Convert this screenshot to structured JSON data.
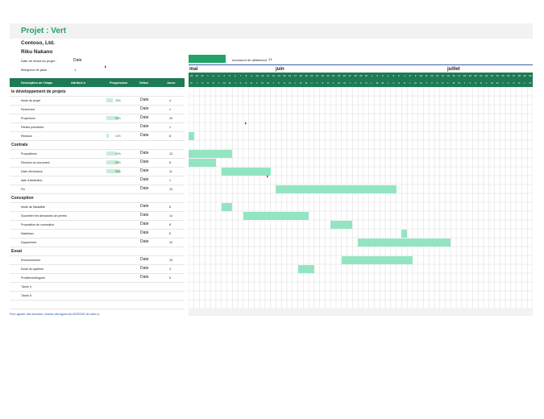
{
  "header": {
    "title": "Projet : Vert",
    "company": "Contoso, Ltd.",
    "manager": "Riku Nakano",
    "start_label": "Date de début du projet :",
    "start_value": "Date",
    "marker_label": "Marqueur de jalon :",
    "marker_value": "1",
    "increment_label": "Incrément de défilement :",
    "increment_value": "13"
  },
  "timeline": {
    "months": [
      "mai",
      "juin",
      "juillet"
    ],
    "day_numbers": [
      "29",
      "30",
      "31",
      "1",
      "2",
      "3",
      "4",
      "5",
      "6",
      "7",
      "8",
      "9",
      "10",
      "11",
      "12",
      "13",
      "14",
      "15",
      "16",
      "17",
      "18",
      "19",
      "20",
      "21",
      "22",
      "23",
      "24",
      "25",
      "26",
      "27",
      "28",
      "29",
      "30",
      "1",
      "2",
      "3",
      "4",
      "5",
      "6",
      "7",
      "8",
      "9",
      "10",
      "11",
      "12",
      "13",
      "14",
      "15",
      "16",
      "17",
      "18",
      "19",
      "20",
      "21",
      "22",
      "23",
      "24",
      "25",
      "26",
      "27",
      "28",
      "29",
      "30"
    ],
    "day_letters": [
      "M",
      "J",
      "V",
      "S",
      "D",
      "L",
      "M",
      "M",
      "J",
      "V",
      "S",
      "D",
      "L",
      "M",
      "M",
      "J",
      "V",
      "S",
      "D",
      "L",
      "M",
      "M",
      "J",
      "V",
      "S",
      "D",
      "L",
      "M",
      "M",
      "J",
      "V",
      "S",
      "D",
      "L",
      "M",
      "M",
      "J",
      "V",
      "S",
      "D",
      "L",
      "M",
      "M",
      "J",
      "V",
      "S",
      "D",
      "L",
      "M",
      "M",
      "J",
      "V",
      "S",
      "D",
      "L",
      "M",
      "M",
      "J",
      "V",
      "S",
      "D",
      "L",
      "M",
      "M"
    ]
  },
  "columns": {
    "description": "Description de l'étape",
    "assigned": "Attribué à",
    "progress": "Progression",
    "start": "Début",
    "days": "Jours"
  },
  "rows": [
    {
      "kind": "phase",
      "label": "le développement de projets"
    },
    {
      "kind": "task",
      "label": "étude de projet",
      "progress": "25%",
      "progress_value": 25,
      "start": "Date",
      "days": "4",
      "bar_start": -1,
      "bar_len": 0,
      "milestone": false
    },
    {
      "kind": "task",
      "label": "Recherche",
      "progress": "",
      "progress_value": 0,
      "start": "Date",
      "days": "1",
      "bar_start": -1,
      "bar_len": 0,
      "milestone": false
    },
    {
      "kind": "task",
      "label": "Projections",
      "progress": "50%",
      "progress_value": 50,
      "start": "Date",
      "days": "20",
      "bar_start": -1,
      "bar_len": 0,
      "milestone": false
    },
    {
      "kind": "task",
      "label": "Parties prenantes",
      "progress": "",
      "progress_value": 0,
      "start": "Date",
      "days": "1",
      "bar_start": -1,
      "bar_len": 0,
      "milestone": true,
      "milestone_day": 10
    },
    {
      "kind": "task",
      "label": "Révision",
      "progress": "10%",
      "progress_value": 10,
      "start": "Date",
      "days": "8",
      "bar_start": 0,
      "bar_len": 1,
      "milestone": false
    },
    {
      "kind": "phase",
      "label": "Contrats"
    },
    {
      "kind": "task",
      "label": "Propositions",
      "progress": "40%",
      "progress_value": 40,
      "start": "Date",
      "days": "13",
      "bar_start": 0,
      "bar_len": 8,
      "milestone": false
    },
    {
      "kind": "task",
      "label": "Révision du document",
      "progress": "50%",
      "progress_value": 50,
      "start": "Date",
      "days": "8",
      "bar_start": 0,
      "bar_len": 5,
      "milestone": false
    },
    {
      "kind": "task",
      "label": "Date d'échéance",
      "progress": "55%",
      "progress_value": 55,
      "start": "Date",
      "days": "11",
      "bar_start": 6,
      "bar_len": 9,
      "milestone": false
    },
    {
      "kind": "task",
      "label": "date d'attribution",
      "progress": "",
      "progress_value": 0,
      "start": "Date",
      "days": "1",
      "bar_start": -1,
      "bar_len": 0,
      "milestone": true,
      "milestone_day": 14
    },
    {
      "kind": "task",
      "label": "Fin",
      "progress": "",
      "progress_value": 0,
      "start": "Date",
      "days": "24",
      "bar_start": 16,
      "bar_len": 22,
      "milestone": false
    },
    {
      "kind": "phase",
      "label": "Conception"
    },
    {
      "kind": "task",
      "label": "étude de faisabilité",
      "progress": "",
      "progress_value": 0,
      "start": "Date",
      "days": "8",
      "bar_start": 6,
      "bar_len": 2,
      "milestone": false
    },
    {
      "kind": "task",
      "label": "Soumettre les demandes de permis",
      "progress": "",
      "progress_value": 0,
      "start": "Date",
      "days": "14",
      "bar_start": 10,
      "bar_len": 12,
      "milestone": false
    },
    {
      "kind": "task",
      "label": "Proposition de conception",
      "progress": "",
      "progress_value": 0,
      "start": "Date",
      "days": "8",
      "bar_start": 26,
      "bar_len": 4,
      "milestone": false
    },
    {
      "kind": "task",
      "label": "Matériaux",
      "progress": "",
      "progress_value": 0,
      "start": "Date",
      "days": "8",
      "bar_start": 39,
      "bar_len": 1,
      "milestone": false
    },
    {
      "kind": "task",
      "label": "Equipement",
      "progress": "",
      "progress_value": 0,
      "start": "Date",
      "days": "20",
      "bar_start": 31,
      "bar_len": 17,
      "milestone": false
    },
    {
      "kind": "phase",
      "label": "Essai"
    },
    {
      "kind": "task",
      "label": "Environnement",
      "progress": "",
      "progress_value": 0,
      "start": "Date",
      "days": "16",
      "bar_start": 28,
      "bar_len": 13,
      "milestone": false
    },
    {
      "kind": "task",
      "label": "Essai du système",
      "progress": "",
      "progress_value": 0,
      "start": "Date",
      "days": "3",
      "bar_start": 20,
      "bar_len": 3,
      "milestone": false
    },
    {
      "kind": "task",
      "label": "Problèmes/bogues",
      "progress": "",
      "progress_value": 0,
      "start": "Date",
      "days": "5",
      "bar_start": -1,
      "bar_len": 0,
      "milestone": false
    },
    {
      "kind": "task",
      "label": "Tâche 4",
      "progress": "",
      "progress_value": 0,
      "start": "",
      "days": "",
      "bar_start": -1,
      "bar_len": 0,
      "milestone": false
    },
    {
      "kind": "task",
      "label": "Tâche 5",
      "progress": "",
      "progress_value": 0,
      "start": "",
      "days": "",
      "bar_start": -1,
      "bar_len": 0,
      "milestone": false
    },
    {
      "kind": "blank",
      "label": ""
    }
  ],
  "footer": "Pour ajouter des données, insérez des lignes AU-DESSUS de celle-ci.",
  "colors": {
    "accent": "#21a366",
    "header": "#1e7b53",
    "bar": "#93e5c2",
    "milestone": "#e02020"
  }
}
